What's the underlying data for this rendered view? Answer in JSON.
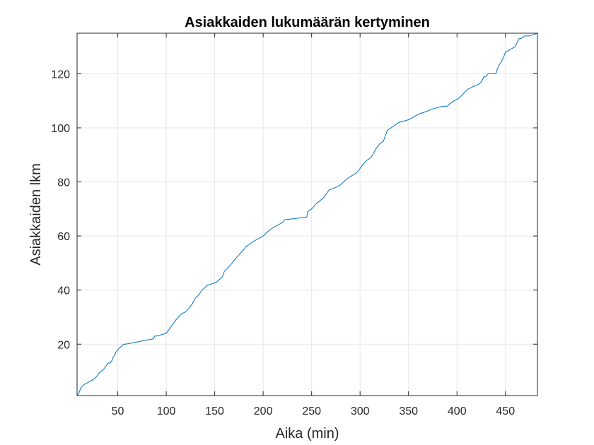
{
  "chart_data": {
    "type": "line",
    "title": "Asiakkaiden lukumäärän kertyminen",
    "xlabel": "Aika (min)",
    "ylabel": "Asiakkaiden lkm",
    "xlim": [
      8,
      483
    ],
    "ylim": [
      1,
      135
    ],
    "xticks": [
      50,
      100,
      150,
      200,
      250,
      300,
      350,
      400,
      450
    ],
    "yticks": [
      20,
      40,
      60,
      80,
      100,
      120
    ],
    "grid": true,
    "line_color": "#0072BD",
    "series": [
      {
        "x": [
          8,
          10,
          12,
          15,
          20,
          25,
          28,
          30,
          33,
          36,
          38,
          40,
          42,
          44,
          45,
          47,
          48,
          50,
          53,
          56,
          58,
          87,
          88,
          90,
          100,
          102,
          104,
          106,
          108,
          110,
          115,
          120,
          123,
          125,
          127,
          130,
          133,
          135,
          137,
          140,
          143,
          145,
          152,
          155,
          158,
          160,
          163,
          168,
          170,
          175,
          180,
          182,
          186,
          190,
          195,
          200,
          203,
          206,
          210,
          215,
          220,
          222,
          245,
          246,
          250,
          255,
          262,
          264,
          268,
          275,
          280,
          283,
          286,
          290,
          295,
          298,
          302,
          304,
          307,
          311,
          313,
          316,
          320,
          324,
          326,
          328,
          332,
          336,
          340,
          350,
          355,
          360,
          368,
          375,
          385,
          390,
          393,
          397,
          402,
          405,
          410,
          415,
          422,
          425,
          428,
          430,
          432,
          435,
          440,
          443,
          445,
          448,
          450,
          455,
          460,
          464,
          466,
          470,
          475,
          483
        ],
        "y": [
          1,
          2,
          4,
          5,
          6,
          7,
          8,
          9,
          10,
          11,
          12,
          13,
          13,
          14,
          15,
          16,
          17,
          18,
          19,
          20,
          20,
          22,
          23,
          23,
          24,
          25,
          26,
          27,
          28,
          29,
          31,
          32,
          33,
          34,
          35,
          37,
          38,
          39,
          40,
          41,
          42,
          42,
          43,
          44,
          45,
          47,
          48,
          50,
          51,
          53,
          55,
          56,
          57,
          58,
          59,
          60,
          61,
          62,
          63,
          64,
          65,
          66,
          67,
          69,
          70,
          72,
          74,
          75,
          77,
          78,
          79,
          80,
          81,
          82,
          83,
          84,
          86,
          87,
          88,
          89,
          90,
          92,
          94,
          95,
          97,
          99,
          100,
          101,
          102,
          103,
          104,
          105,
          106,
          107,
          108,
          108,
          109,
          110,
          111,
          112,
          114,
          115,
          116,
          117,
          119,
          119,
          120,
          120,
          120,
          123,
          124,
          126,
          128,
          129,
          130,
          133,
          133,
          134,
          134,
          135
        ]
      }
    ]
  }
}
